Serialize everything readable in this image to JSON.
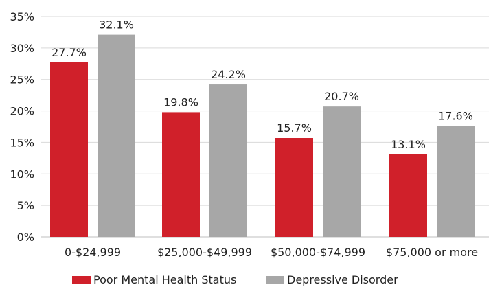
{
  "chart_data": {
    "type": "bar",
    "categories": [
      "0-$24,999",
      "$25,000-$49,999",
      "$50,000-$74,999",
      "$75,000 or more"
    ],
    "series": [
      {
        "name": "Poor Mental Health Status",
        "color": "#d0202a",
        "values": [
          27.7,
          19.8,
          15.7,
          13.1
        ],
        "labels": [
          "27.7%",
          "19.8%",
          "15.7%",
          "13.1%"
        ]
      },
      {
        "name": "Depressive Disorder",
        "color": "#a7a7a7",
        "values": [
          32.1,
          24.2,
          20.7,
          17.6
        ],
        "labels": [
          "32.1%",
          "24.2%",
          "20.7%",
          "17.6%"
        ]
      }
    ],
    "y_ticks": [
      0,
      5,
      10,
      15,
      20,
      25,
      30,
      35
    ],
    "y_tick_labels": [
      "0%",
      "5%",
      "10%",
      "15%",
      "20%",
      "25%",
      "30%",
      "35%"
    ],
    "ylim": [
      0,
      35
    ],
    "grid": true,
    "legend_position": "bottom-center",
    "grid_color": "#d9d9d9",
    "text_color": "#222222"
  }
}
